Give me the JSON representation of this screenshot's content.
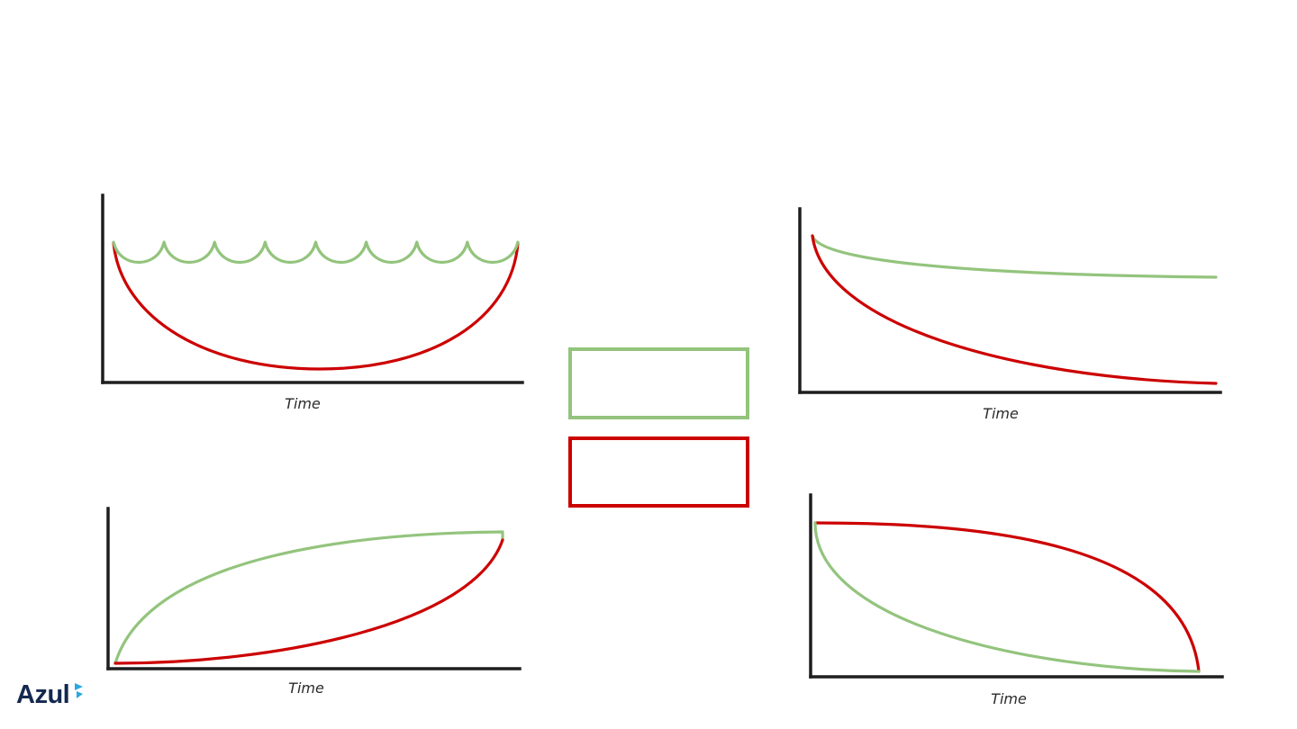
{
  "colors": {
    "green": "#93c47d",
    "red": "#cc0000",
    "axis": "#1e1e1e",
    "logo_text": "#142850",
    "logo_accent": "#29a8e0"
  },
  "logo": {
    "text": "Azul"
  },
  "legend": [
    {
      "color": "green",
      "label": ""
    },
    {
      "color": "red",
      "label": ""
    }
  ],
  "chart_data": [
    {
      "type": "line",
      "panel": "top-left",
      "xlabel": "Time",
      "ylabel": "",
      "series": [
        {
          "color": "green",
          "shape": "repeated scallops (9 dips) staying near the top level"
        },
        {
          "color": "red",
          "shape": "single deep U-shaped dip returning to top level at the end"
        }
      ]
    },
    {
      "type": "line",
      "panel": "top-right",
      "xlabel": "Time",
      "ylabel": "",
      "series": [
        {
          "color": "green",
          "shape": "slight decay from start, levelling off high"
        },
        {
          "color": "red",
          "shape": "steep decay from start, levelling off near the bottom"
        }
      ]
    },
    {
      "type": "line",
      "panel": "bottom-left",
      "xlabel": "Time",
      "ylabel": "",
      "series": [
        {
          "color": "green",
          "shape": "concave rise from bottom to top"
        },
        {
          "color": "red",
          "shape": "convex rise from bottom to top, meeting green at the end"
        }
      ]
    },
    {
      "type": "line",
      "panel": "bottom-right",
      "xlabel": "Time",
      "ylabel": "",
      "series": [
        {
          "color": "green",
          "shape": "convex fall from top to bottom"
        },
        {
          "color": "red",
          "shape": "concave fall from top to bottom, meeting green at the end"
        }
      ]
    }
  ]
}
